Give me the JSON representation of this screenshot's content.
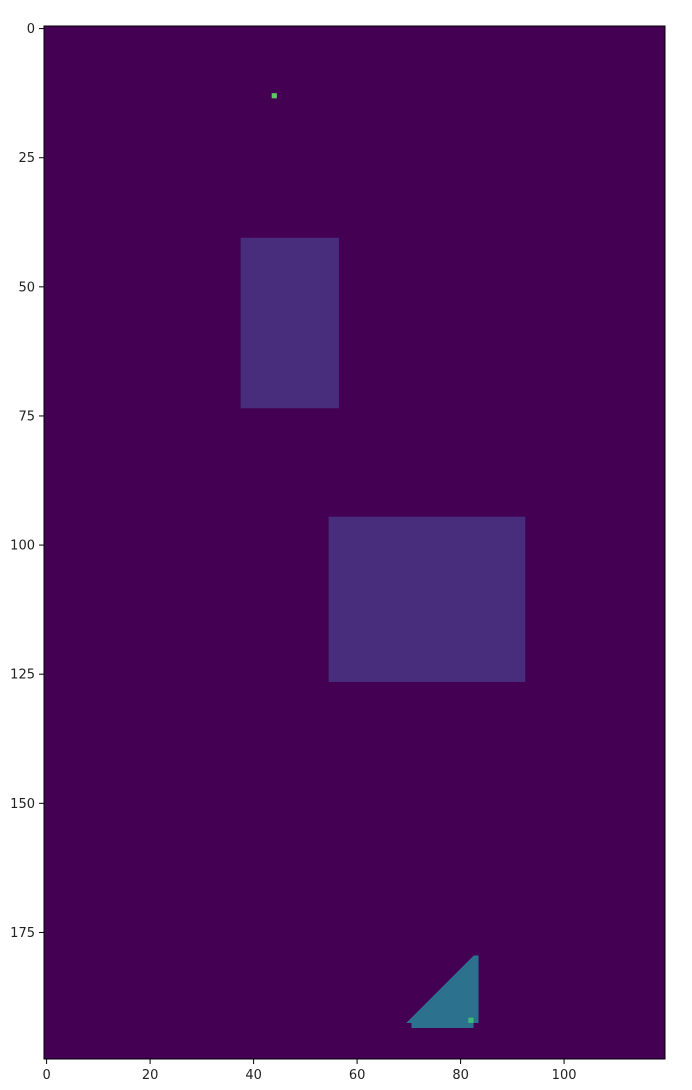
{
  "chart_data": {
    "type": "heatmap",
    "title": "",
    "xlabel": "",
    "ylabel": "",
    "colormap": "viridis",
    "grid": false,
    "extent": {
      "cols": 120,
      "rows": 200
    },
    "xlim": [
      -0.5,
      119.5
    ],
    "ylim": [
      199.5,
      -0.5
    ],
    "x_ticks": [
      0,
      20,
      40,
      60,
      80,
      100
    ],
    "y_ticks": [
      0,
      25,
      50,
      75,
      100,
      125,
      150,
      175
    ],
    "x_tick_labels": [
      "0",
      "20",
      "40",
      "60",
      "80",
      "100"
    ],
    "y_tick_labels": [
      "0",
      "25",
      "50",
      "75",
      "100",
      "125",
      "150",
      "175"
    ],
    "background_color": "#440154",
    "regions": [
      {
        "kind": "rect",
        "name": "rect-region-upper",
        "x0": 38,
        "x1": 56,
        "y0": 41,
        "y1": 73,
        "color": "#472d7b"
      },
      {
        "kind": "rect",
        "name": "rect-region-middle",
        "x0": 55,
        "x1": 92,
        "y0": 95,
        "y1": 126,
        "color": "#472d7b"
      },
      {
        "kind": "polygon",
        "name": "triangle-region",
        "color": "#2c728e",
        "points": [
          [
            70,
            193
          ],
          [
            71,
            192
          ],
          [
            72,
            191
          ],
          [
            73,
            190
          ],
          [
            74,
            189
          ],
          [
            75,
            188
          ],
          [
            76,
            187
          ],
          [
            77,
            186
          ],
          [
            78,
            185
          ],
          [
            79,
            184
          ],
          [
            80,
            183
          ],
          [
            81,
            182
          ],
          [
            82,
            181
          ],
          [
            83,
            180
          ],
          [
            84,
            180
          ],
          [
            84,
            193
          ],
          [
            83,
            193
          ],
          [
            83,
            194
          ],
          [
            71,
            194
          ],
          [
            71,
            193
          ]
        ]
      }
    ],
    "points": [
      {
        "name": "highlight-pixel-top",
        "x": 44,
        "y": 13,
        "color": "#5ec962"
      },
      {
        "name": "highlight-pixel-bottom",
        "x": 82,
        "y": 192,
        "color": "#3fbc73"
      }
    ]
  }
}
